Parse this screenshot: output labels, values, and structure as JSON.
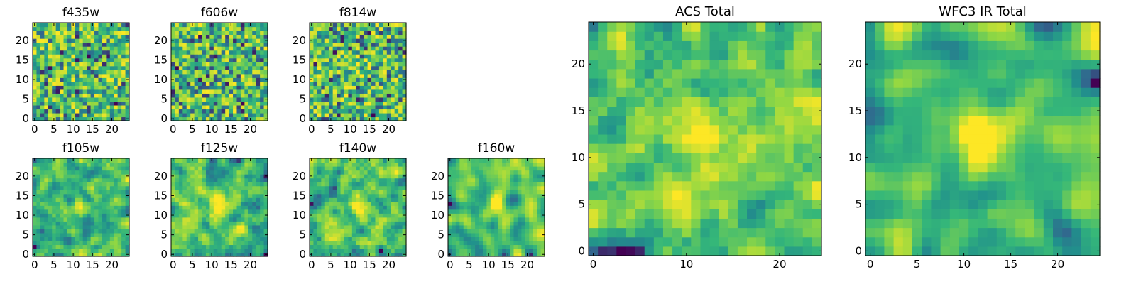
{
  "figure": {
    "title": "",
    "colormap": "viridis",
    "colors": {
      "viridis": [
        "#440154",
        "#31688e",
        "#21918c",
        "#35b779",
        "#90d743",
        "#fde725"
      ],
      "frame": "#000000",
      "background": "#ffffff"
    }
  },
  "chart_data": [
    {
      "id": "f435w",
      "type": "heatmap",
      "title": "f435w",
      "grid": [
        25,
        25
      ],
      "seed": 11,
      "smooth": 0,
      "blob": null,
      "xlim": [
        -0.5,
        24.5
      ],
      "ylim": [
        -0.5,
        24.5
      ],
      "xticks": [
        0,
        5,
        10,
        15,
        20
      ],
      "yticks": [
        0,
        5,
        10,
        15,
        20
      ],
      "xlabel": "",
      "ylabel": "",
      "value_range": [
        0,
        1
      ]
    },
    {
      "id": "f606w",
      "type": "heatmap",
      "title": "f606w",
      "grid": [
        25,
        25
      ],
      "seed": 23,
      "smooth": 0,
      "blob": null,
      "xlim": [
        -0.5,
        24.5
      ],
      "ylim": [
        -0.5,
        24.5
      ],
      "xticks": [
        0,
        5,
        10,
        15,
        20
      ],
      "yticks": [
        0,
        5,
        10,
        15,
        20
      ],
      "xlabel": "",
      "ylabel": "",
      "value_range": [
        0,
        1
      ]
    },
    {
      "id": "f814w",
      "type": "heatmap",
      "title": "f814w",
      "grid": [
        25,
        25
      ],
      "seed": 37,
      "smooth": 0,
      "blob": [
        12,
        13,
        0.15
      ],
      "xlim": [
        -0.5,
        24.5
      ],
      "ylim": [
        -0.5,
        24.5
      ],
      "xticks": [
        0,
        5,
        10,
        15,
        20
      ],
      "yticks": [
        0,
        5,
        10,
        15,
        20
      ],
      "xlabel": "",
      "ylabel": "",
      "value_range": [
        0,
        1
      ]
    },
    {
      "id": "f105w",
      "type": "heatmap",
      "title": "f105w",
      "grid": [
        25,
        25
      ],
      "seed": 41,
      "smooth": 1,
      "blob": [
        12,
        13,
        0.3
      ],
      "xlim": [
        -0.5,
        24.5
      ],
      "ylim": [
        -0.5,
        24.5
      ],
      "xticks": [
        0,
        5,
        10,
        15,
        20
      ],
      "yticks": [
        0,
        5,
        10,
        15,
        20
      ],
      "xlabel": "",
      "ylabel": "",
      "value_range": [
        0,
        1
      ]
    },
    {
      "id": "f125w",
      "type": "heatmap",
      "title": "f125w",
      "grid": [
        25,
        25
      ],
      "seed": 53,
      "smooth": 1,
      "blob": [
        12,
        12,
        0.45
      ],
      "xlim": [
        -0.5,
        24.5
      ],
      "ylim": [
        -0.5,
        24.5
      ],
      "xticks": [
        0,
        5,
        10,
        15,
        20
      ],
      "yticks": [
        0,
        5,
        10,
        15,
        20
      ],
      "xlabel": "",
      "ylabel": "",
      "value_range": [
        0,
        1
      ]
    },
    {
      "id": "f140w",
      "type": "heatmap",
      "title": "f140w",
      "grid": [
        25,
        25
      ],
      "seed": 67,
      "smooth": 1,
      "blob": [
        12,
        13,
        0.3
      ],
      "xlim": [
        -0.5,
        24.5
      ],
      "ylim": [
        -0.5,
        24.5
      ],
      "xticks": [
        0,
        5,
        10,
        15,
        20
      ],
      "yticks": [
        0,
        5,
        10,
        15,
        20
      ],
      "xlabel": "",
      "ylabel": "",
      "value_range": [
        0,
        1
      ]
    },
    {
      "id": "f160w",
      "type": "heatmap",
      "title": "f160w",
      "grid": [
        25,
        25
      ],
      "seed": 79,
      "smooth": 2,
      "blob": [
        12,
        13,
        0.5
      ],
      "xlim": [
        -0.5,
        24.5
      ],
      "ylim": [
        -0.5,
        24.5
      ],
      "xticks": [
        0,
        5,
        10,
        15,
        20
      ],
      "yticks": [
        0,
        5,
        10,
        15,
        20
      ],
      "xlabel": "",
      "ylabel": "",
      "value_range": [
        0,
        1
      ]
    },
    {
      "id": "acs-total",
      "type": "heatmap",
      "title": "ACS Total",
      "grid": [
        25,
        25
      ],
      "seed": 97,
      "smooth": 1,
      "blob": [
        12,
        12,
        0.35
      ],
      "xlim": [
        -0.5,
        24.5
      ],
      "ylim": [
        -0.5,
        24.5
      ],
      "xticks": [
        0,
        10,
        20
      ],
      "yticks": [
        0,
        5,
        10,
        15,
        20
      ],
      "xlabel": "",
      "ylabel": "",
      "value_range": [
        0,
        1
      ]
    },
    {
      "id": "wfc3-ir-total",
      "type": "heatmap",
      "title": "WFC3 IR Total",
      "grid": [
        25,
        25
      ],
      "seed": 113,
      "smooth": 2,
      "blob": [
        12,
        12,
        0.55
      ],
      "xlim": [
        -0.5,
        24.5
      ],
      "ylim": [
        -0.5,
        24.5
      ],
      "xticks": [
        0,
        5,
        10,
        15,
        20
      ],
      "yticks": [
        0,
        5,
        10,
        15,
        20
      ],
      "xlabel": "",
      "ylabel": "",
      "value_range": [
        0,
        1
      ]
    }
  ]
}
